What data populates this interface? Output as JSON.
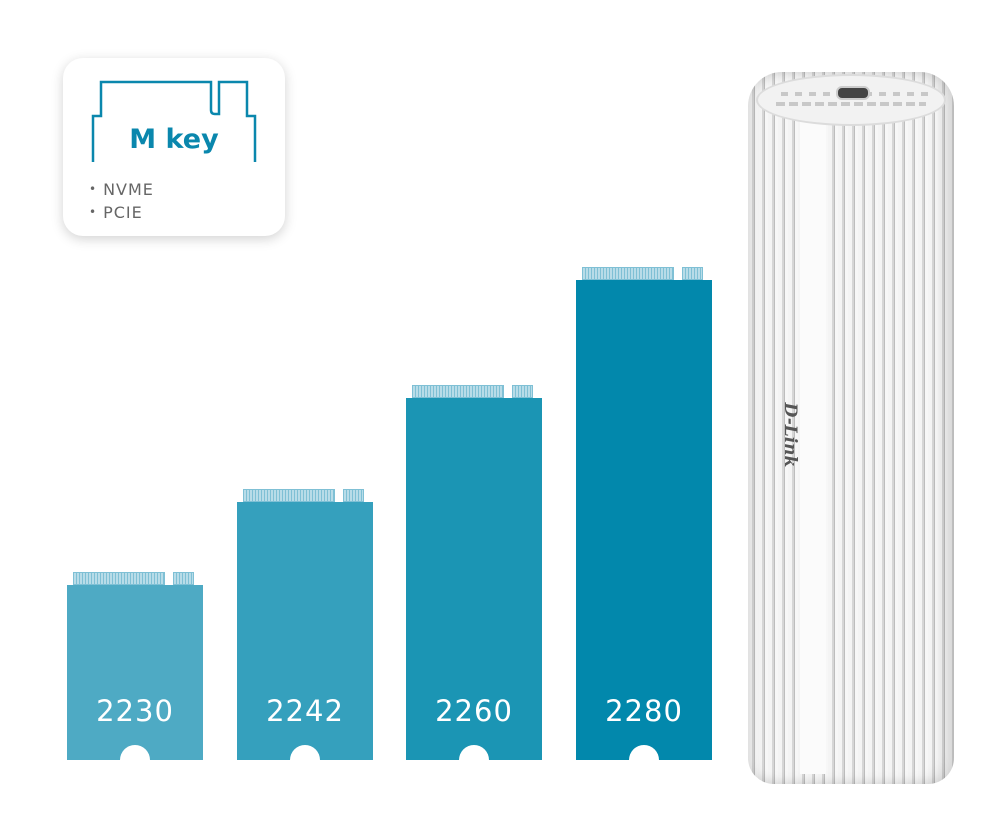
{
  "key_box": {
    "title": "M key",
    "items": [
      "NVME",
      "PCIE"
    ],
    "accent": "#0a87ad"
  },
  "cards": [
    {
      "label": "2230",
      "color": "#4eaac4"
    },
    {
      "label": "2242",
      "color": "#35a0bd"
    },
    {
      "label": "2260",
      "color": "#1b95b4"
    },
    {
      "label": "2280",
      "color": "#0288ac"
    }
  ],
  "enclosure": {
    "logo": "D-Link"
  }
}
